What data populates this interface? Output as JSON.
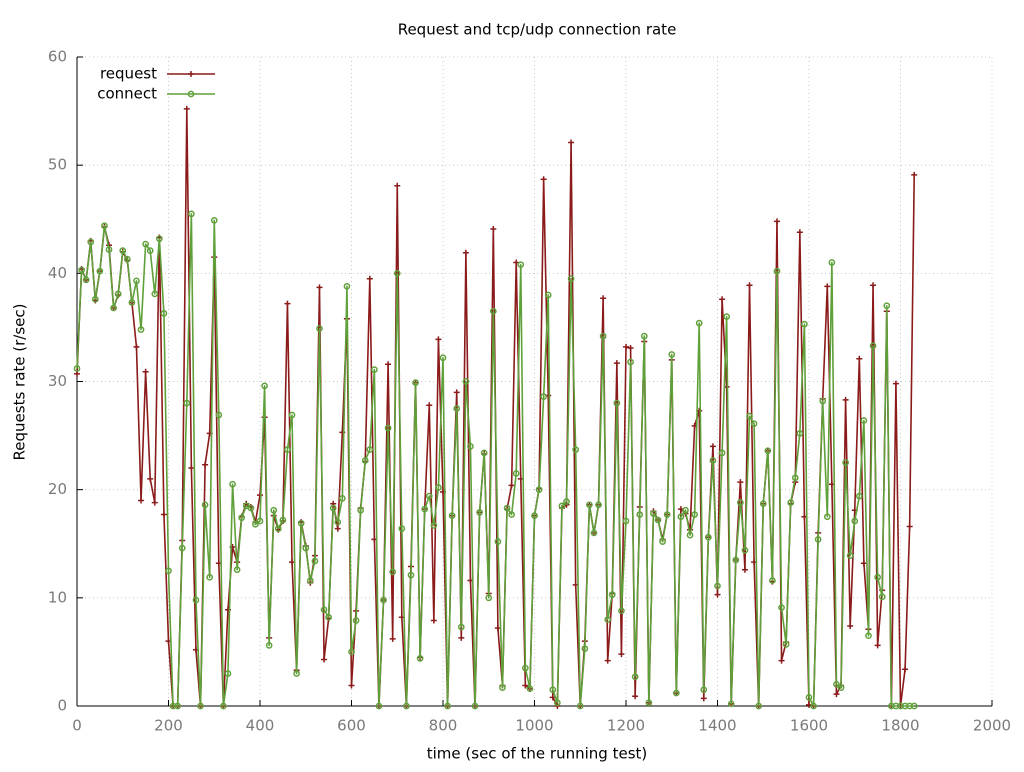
{
  "chart_data": {
    "type": "line",
    "title": "Request and tcp/udp connection rate",
    "x_label": "time (sec of the running test)",
    "y_label": "Requests rate (r/sec)",
    "xlim": [
      0,
      2000
    ],
    "ylim": [
      0,
      60
    ],
    "xticks": [
      0,
      200,
      400,
      600,
      800,
      1000,
      1200,
      1400,
      1600,
      1800,
      2000
    ],
    "yticks": [
      0,
      10,
      20,
      30,
      40,
      50,
      60
    ],
    "grid": true,
    "legend": "top-left",
    "x": [
      0,
      10,
      20,
      30,
      40,
      50,
      60,
      70,
      80,
      90,
      100,
      110,
      120,
      130,
      140,
      150,
      160,
      170,
      180,
      190,
      200,
      210,
      220,
      230,
      240,
      250,
      260,
      270,
      280,
      290,
      300,
      310,
      320,
      330,
      340,
      350,
      360,
      370,
      380,
      390,
      400,
      410,
      420,
      430,
      440,
      450,
      460,
      470,
      480,
      490,
      500,
      510,
      520,
      530,
      540,
      550,
      560,
      570,
      580,
      590,
      600,
      610,
      620,
      630,
      640,
      650,
      660,
      670,
      680,
      690,
      700,
      710,
      720,
      730,
      740,
      750,
      760,
      770,
      780,
      790,
      800,
      810,
      820,
      830,
      840,
      850,
      860,
      870,
      880,
      890,
      900,
      910,
      920,
      930,
      940,
      950,
      960,
      970,
      980,
      990,
      1000,
      1010,
      1020,
      1030,
      1040,
      1050,
      1060,
      1070,
      1080,
      1090,
      1100,
      1110,
      1120,
      1130,
      1140,
      1150,
      1160,
      1170,
      1180,
      1190,
      1200,
      1210,
      1220,
      1230,
      1240,
      1250,
      1260,
      1270,
      1280,
      1290,
      1300,
      1310,
      1320,
      1330,
      1340,
      1350,
      1360,
      1370,
      1380,
      1390,
      1400,
      1410,
      1420,
      1430,
      1440,
      1450,
      1460,
      1470,
      1480,
      1490,
      1500,
      1510,
      1520,
      1530,
      1540,
      1550,
      1560,
      1570,
      1580,
      1590,
      1600,
      1610,
      1620,
      1630,
      1640,
      1650,
      1660,
      1670,
      1680,
      1690,
      1700,
      1710,
      1720,
      1730,
      1740,
      1750,
      1760,
      1770,
      1780,
      1790,
      1800,
      1810,
      1820,
      1830
    ],
    "series": [
      {
        "name": "request",
        "color": "#8b1a1a",
        "marker": "plus",
        "values": [
          30.7,
          40.4,
          39.4,
          43,
          37.5,
          40.2,
          44.3,
          42.6,
          36.8,
          38,
          42,
          41.2,
          37.3,
          33.2,
          19,
          30.9,
          21,
          18.8,
          43.3,
          17.7,
          6,
          0,
          0,
          15.3,
          55.2,
          22,
          5.2,
          0,
          22.3,
          25.2,
          41.5,
          13.2,
          0,
          8.9,
          14.7,
          13.3,
          17.5,
          18.7,
          18.4,
          17,
          19.5,
          26.7,
          6.3,
          17.6,
          16.3,
          17.1,
          37.2,
          13.3,
          3.3,
          17,
          14.8,
          11.4,
          13.9,
          38.7,
          4.3,
          8.1,
          18.7,
          16.4,
          25.3,
          35.8,
          1.9,
          8.8,
          18.3,
          22.6,
          39.5,
          15.4,
          0,
          9.8,
          31.6,
          6.2,
          48.1,
          8.2,
          0,
          12.9,
          29.9,
          4.5,
          18.2,
          27.8,
          7.9,
          33.9,
          19.8,
          0,
          17.6,
          29,
          6.3,
          41.9,
          11.6,
          0,
          17.9,
          23.3,
          10.4,
          44.1,
          7.2,
          1.9,
          18.2,
          20.4,
          41,
          21,
          1.9,
          1.6,
          17.6,
          20.1,
          48.7,
          28.7,
          0.8,
          0,
          18.3,
          18.6,
          52.1,
          11.2,
          0,
          6,
          18.6,
          16,
          18.6,
          37.7,
          4.2,
          10.4,
          31.7,
          4.8,
          33.2,
          33.1,
          0.9,
          18.4,
          33.7,
          0.3,
          18,
          17.2,
          15.4,
          17.7,
          32,
          1.2,
          18.2,
          17.8,
          16.3,
          25.9,
          27.3,
          0.7,
          15.6,
          24,
          10.3,
          37.6,
          29.5,
          0.2,
          13.5,
          20.7,
          12.6,
          38.9,
          13.3,
          0,
          18.7,
          23.6,
          11.5,
          44.8,
          4.2,
          5.9,
          18.7,
          20.7,
          43.8,
          17.5,
          0.1,
          0,
          16,
          28.4,
          38.8,
          20.5,
          1.1,
          1.9,
          28.3,
          7.4,
          18.1,
          32.1,
          13.2,
          7.1,
          38.9,
          5.6,
          10.7,
          36.5,
          0,
          29.8,
          0,
          3.4,
          16.6,
          49.1
        ]
      },
      {
        "name": "connect",
        "color": "#5fa03a",
        "marker": "circle",
        "values": [
          31.2,
          40.3,
          39.4,
          42.9,
          37.6,
          40.2,
          44.4,
          42.2,
          36.8,
          38.1,
          42.1,
          41.3,
          37.3,
          39.3,
          34.8,
          42.7,
          42.1,
          38.1,
          43.2,
          36.3,
          12.5,
          0,
          0,
          14.6,
          28,
          45.5,
          9.8,
          0,
          18.6,
          11.9,
          44.9,
          26.9,
          0,
          3,
          20.5,
          12.6,
          17.4,
          18.5,
          18.3,
          16.8,
          17.1,
          29.6,
          5.6,
          18.1,
          16.4,
          17.2,
          23.7,
          26.9,
          3,
          16.9,
          14.6,
          11.6,
          13.4,
          34.9,
          8.9,
          8.2,
          18.3,
          17,
          19.2,
          38.8,
          5,
          7.9,
          18.1,
          22.7,
          23.7,
          31.1,
          0,
          9.8,
          25.7,
          12.4,
          40,
          16.4,
          0,
          12.1,
          29.9,
          4.4,
          18.2,
          19.4,
          16.7,
          20.2,
          32.2,
          0,
          17.6,
          27.5,
          7.3,
          30,
          24,
          0,
          17.9,
          23.4,
          10,
          36.5,
          15.2,
          1.7,
          18.3,
          17.7,
          21.5,
          40.8,
          3.5,
          1.6,
          17.6,
          20,
          28.6,
          38,
          1.5,
          0.3,
          18.5,
          18.9,
          39.5,
          23.7,
          0,
          5.3,
          18.6,
          16,
          18.6,
          34.2,
          8,
          10.3,
          28,
          8.8,
          17.1,
          31.8,
          2.7,
          17.7,
          34.2,
          0.3,
          17.8,
          17.2,
          15.2,
          17.7,
          32.5,
          1.2,
          17.5,
          18.1,
          15.8,
          17.7,
          35.4,
          1.5,
          15.6,
          22.7,
          11.1,
          23.4,
          36,
          0.2,
          13.5,
          18.8,
          14.4,
          26.8,
          26.1,
          0,
          18.7,
          23.6,
          11.6,
          40.2,
          9.1,
          5.7,
          18.8,
          21.1,
          25.2,
          35.3,
          0.8,
          0,
          15.4,
          28.2,
          17.5,
          41,
          2,
          1.7,
          22.5,
          13.9,
          17.1,
          19.4,
          26.4,
          6.5,
          33.3,
          11.9,
          10.1,
          37,
          0,
          0,
          0,
          0,
          0,
          0
        ]
      }
    ]
  }
}
